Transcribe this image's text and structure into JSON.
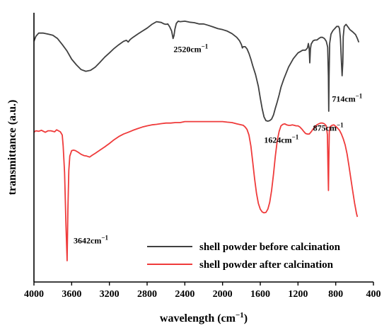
{
  "chart_data": {
    "type": "line",
    "title": "",
    "xlabel": "wavelength (cm",
    "xlabel_suffix": ")",
    "xlabel_superscript": "−1",
    "ylabel": "transmittance (a.u.)",
    "xlim": [
      4000,
      400
    ],
    "x_reversed": true,
    "ylim": [
      0,
      100
    ],
    "y_ticks_shown": false,
    "grid": false,
    "legend_position": "bottom-right",
    "x_ticks": [
      {
        "value": 4000,
        "label": "4000"
      },
      {
        "value": 3600,
        "label": "3600"
      },
      {
        "value": 3200,
        "label": "3200"
      },
      {
        "value": 2800,
        "label": "2800"
      },
      {
        "value": 2400,
        "label": "2400"
      },
      {
        "value": 2000,
        "label": "2000"
      },
      {
        "value": 1600,
        "label": "1600"
      },
      {
        "value": 1200,
        "label": "1200"
      },
      {
        "value": 800,
        "label": "800"
      },
      {
        "value": 400,
        "label": "400"
      }
    ],
    "series": [
      {
        "name": "shell powder before calcination",
        "color": "#404040",
        "points": [
          [
            4000,
            88.5
          ],
          [
            3980,
            90.5
          ],
          [
            3950,
            91.8
          ],
          [
            3900,
            91.8
          ],
          [
            3850,
            91.4
          ],
          [
            3800,
            90.9
          ],
          [
            3750,
            89.6
          ],
          [
            3700,
            87.2
          ],
          [
            3650,
            84.6
          ],
          [
            3600,
            81.3
          ],
          [
            3550,
            79.0
          ],
          [
            3500,
            77.1
          ],
          [
            3450,
            76.4
          ],
          [
            3400,
            76.8
          ],
          [
            3350,
            78.1
          ],
          [
            3300,
            80.0
          ],
          [
            3250,
            82.1
          ],
          [
            3200,
            83.8
          ],
          [
            3150,
            85.6
          ],
          [
            3100,
            87.1
          ],
          [
            3050,
            88.5
          ],
          [
            3020,
            88.9
          ],
          [
            3000,
            88.2
          ],
          [
            2980,
            89.2
          ],
          [
            2950,
            90.1
          ],
          [
            2900,
            91.4
          ],
          [
            2850,
            92.6
          ],
          [
            2800,
            93.8
          ],
          [
            2750,
            95.3
          ],
          [
            2700,
            96.4
          ],
          [
            2650,
            96.1
          ],
          [
            2620,
            95.5
          ],
          [
            2600,
            95.3
          ],
          [
            2580,
            95.5
          ],
          [
            2560,
            94.3
          ],
          [
            2540,
            92.6
          ],
          [
            2525,
            89.6
          ],
          [
            2515,
            90.8
          ],
          [
            2505,
            93.4
          ],
          [
            2490,
            95.7
          ],
          [
            2470,
            96.6
          ],
          [
            2450,
            96.4
          ],
          [
            2400,
            96.6
          ],
          [
            2350,
            96.2
          ],
          [
            2300,
            96.0
          ],
          [
            2250,
            95.5
          ],
          [
            2200,
            95.5
          ],
          [
            2150,
            94.9
          ],
          [
            2100,
            94.3
          ],
          [
            2050,
            93.6
          ],
          [
            2000,
            93.2
          ],
          [
            1950,
            92.6
          ],
          [
            1900,
            91.6
          ],
          [
            1850,
            90.1
          ],
          [
            1820,
            88.7
          ],
          [
            1800,
            87.2
          ],
          [
            1790,
            85.8
          ],
          [
            1780,
            86.3
          ],
          [
            1760,
            86.3
          ],
          [
            1740,
            85.4
          ],
          [
            1720,
            83.6
          ],
          [
            1700,
            81.3
          ],
          [
            1680,
            78.7
          ],
          [
            1650,
            75.1
          ],
          [
            1620,
            70.3
          ],
          [
            1600,
            65.6
          ],
          [
            1580,
            61.3
          ],
          [
            1560,
            58.0
          ],
          [
            1540,
            56.5
          ],
          [
            1520,
            56.3
          ],
          [
            1500,
            56.5
          ],
          [
            1480,
            57.1
          ],
          [
            1460,
            58.8
          ],
          [
            1440,
            61.5
          ],
          [
            1420,
            64.1
          ],
          [
            1400,
            66.9
          ],
          [
            1380,
            70.0
          ],
          [
            1350,
            73.3
          ],
          [
            1300,
            78.1
          ],
          [
            1250,
            81.5
          ],
          [
            1200,
            83.8
          ],
          [
            1150,
            84.9
          ],
          [
            1120,
            84.9
          ],
          [
            1100,
            85.8
          ],
          [
            1090,
            87.6
          ],
          [
            1082,
            85.8
          ],
          [
            1075,
            79.8
          ],
          [
            1068,
            85.4
          ],
          [
            1060,
            87.4
          ],
          [
            1040,
            88.7
          ],
          [
            1020,
            89.0
          ],
          [
            1000,
            89.0
          ],
          [
            980,
            89.6
          ],
          [
            960,
            90.1
          ],
          [
            940,
            90.1
          ],
          [
            920,
            89.6
          ],
          [
            900,
            88.5
          ],
          [
            885,
            86.1
          ],
          [
            878,
            74.4
          ],
          [
            874,
            60.3
          ],
          [
            870,
            74.4
          ],
          [
            864,
            87.6
          ],
          [
            850,
            91.4
          ],
          [
            830,
            92.8
          ],
          [
            810,
            93.6
          ],
          [
            790,
            94.5
          ],
          [
            770,
            94.5
          ],
          [
            760,
            93.6
          ],
          [
            750,
            89.6
          ],
          [
            740,
            80.4
          ],
          [
            732,
            74.6
          ],
          [
            725,
            79.8
          ],
          [
            720,
            90.3
          ],
          [
            710,
            94.5
          ],
          [
            690,
            95.3
          ],
          [
            670,
            94.3
          ],
          [
            650,
            93.2
          ],
          [
            620,
            92.3
          ],
          [
            590,
            91.2
          ],
          [
            570,
            89.6
          ],
          [
            555,
            88.1
          ]
        ]
      },
      {
        "name": "shell powder after calcination",
        "color": "#ef3b3b",
        "points": [
          [
            4000,
            51.8
          ],
          [
            3980,
            52.4
          ],
          [
            3950,
            52.2
          ],
          [
            3920,
            52.6
          ],
          [
            3880,
            51.8
          ],
          [
            3850,
            52.4
          ],
          [
            3820,
            52.4
          ],
          [
            3780,
            52.0
          ],
          [
            3760,
            52.8
          ],
          [
            3720,
            52.0
          ],
          [
            3700,
            50.7
          ],
          [
            3690,
            46.3
          ],
          [
            3675,
            35.6
          ],
          [
            3660,
            14.0
          ],
          [
            3648,
            0.0
          ],
          [
            3640,
            20.6
          ],
          [
            3630,
            36.4
          ],
          [
            3620,
            42.2
          ],
          [
            3600,
            44.4
          ],
          [
            3580,
            44.6
          ],
          [
            3560,
            44.4
          ],
          [
            3530,
            43.7
          ],
          [
            3500,
            42.9
          ],
          [
            3470,
            42.4
          ],
          [
            3440,
            42.2
          ],
          [
            3410,
            41.8
          ],
          [
            3380,
            42.6
          ],
          [
            3350,
            43.3
          ],
          [
            3300,
            44.6
          ],
          [
            3250,
            45.9
          ],
          [
            3200,
            47.3
          ],
          [
            3150,
            48.8
          ],
          [
            3100,
            50.1
          ],
          [
            3050,
            51.1
          ],
          [
            3000,
            51.8
          ],
          [
            2950,
            52.6
          ],
          [
            2900,
            53.3
          ],
          [
            2850,
            53.9
          ],
          [
            2800,
            54.4
          ],
          [
            2750,
            54.8
          ],
          [
            2700,
            55.0
          ],
          [
            2650,
            55.3
          ],
          [
            2600,
            55.5
          ],
          [
            2550,
            55.5
          ],
          [
            2500,
            55.7
          ],
          [
            2450,
            55.7
          ],
          [
            2400,
            56.1
          ],
          [
            2350,
            56.1
          ],
          [
            2300,
            56.1
          ],
          [
            2250,
            56.1
          ],
          [
            2200,
            56.1
          ],
          [
            2150,
            56.1
          ],
          [
            2100,
            56.1
          ],
          [
            2050,
            56.1
          ],
          [
            2000,
            56.1
          ],
          [
            1950,
            55.9
          ],
          [
            1900,
            55.7
          ],
          [
            1850,
            55.2
          ],
          [
            1800,
            54.8
          ],
          [
            1780,
            54.6
          ],
          [
            1760,
            53.9
          ],
          [
            1740,
            52.9
          ],
          [
            1720,
            50.7
          ],
          [
            1700,
            46.3
          ],
          [
            1680,
            39.9
          ],
          [
            1660,
            33.0
          ],
          [
            1640,
            27.1
          ],
          [
            1620,
            23.1
          ],
          [
            1600,
            20.8
          ],
          [
            1580,
            19.7
          ],
          [
            1560,
            19.3
          ],
          [
            1540,
            19.5
          ],
          [
            1520,
            20.8
          ],
          [
            1500,
            23.5
          ],
          [
            1480,
            28.3
          ],
          [
            1460,
            34.9
          ],
          [
            1440,
            42.2
          ],
          [
            1420,
            48.4
          ],
          [
            1400,
            52.2
          ],
          [
            1380,
            54.4
          ],
          [
            1360,
            55.0
          ],
          [
            1340,
            55.2
          ],
          [
            1320,
            54.8
          ],
          [
            1300,
            54.6
          ],
          [
            1280,
            54.6
          ],
          [
            1260,
            54.8
          ],
          [
            1240,
            54.6
          ],
          [
            1220,
            54.4
          ],
          [
            1200,
            54.4
          ],
          [
            1180,
            53.9
          ],
          [
            1160,
            53.1
          ],
          [
            1140,
            52.2
          ],
          [
            1120,
            51.3
          ],
          [
            1100,
            51.1
          ],
          [
            1080,
            51.1
          ],
          [
            1060,
            52.0
          ],
          [
            1040,
            53.1
          ],
          [
            1020,
            54.0
          ],
          [
            1000,
            54.8
          ],
          [
            980,
            55.2
          ],
          [
            960,
            55.5
          ],
          [
            940,
            55.5
          ],
          [
            920,
            55.2
          ],
          [
            900,
            54.4
          ],
          [
            888,
            50.9
          ],
          [
            882,
            38.0
          ],
          [
            877,
            28.3
          ],
          [
            873,
            39.9
          ],
          [
            868,
            52.0
          ],
          [
            860,
            54.0
          ],
          [
            840,
            54.6
          ],
          [
            820,
            54.8
          ],
          [
            800,
            54.2
          ],
          [
            780,
            53.5
          ],
          [
            760,
            52.6
          ],
          [
            740,
            51.1
          ],
          [
            720,
            49.2
          ],
          [
            700,
            46.7
          ],
          [
            680,
            43.1
          ],
          [
            660,
            38.4
          ],
          [
            640,
            33.2
          ],
          [
            620,
            28.1
          ],
          [
            600,
            23.3
          ],
          [
            580,
            19.1
          ],
          [
            570,
            17.7
          ]
        ]
      }
    ],
    "annotations": [
      {
        "x": 2520,
        "y": 84.2,
        "text": "2520cm",
        "sup": "−1"
      },
      {
        "x": 1560,
        "y": 47.6,
        "text": "1624cm",
        "sup": "−1"
      },
      {
        "x": 1040,
        "y": 52.4,
        "text": "875cm",
        "sup": "−1"
      },
      {
        "x": 840,
        "y": 64.1,
        "text": "714cm",
        "sup": "−1"
      },
      {
        "x": 3580,
        "y": 7.0,
        "text": "3642cm",
        "sup": "−1"
      }
    ]
  }
}
